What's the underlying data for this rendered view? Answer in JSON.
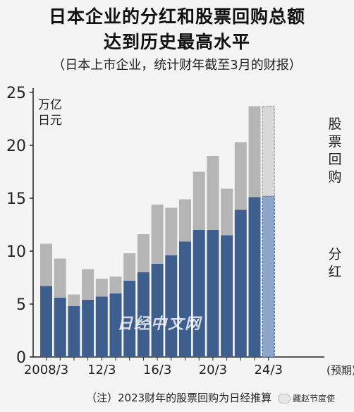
{
  "header": {
    "title_line1": "日本企业的分红和股票回购总额",
    "title_line2": "达到历史最高水平",
    "subtitle": "（日本上市企业，统计财年截至3月的财报）"
  },
  "footnote": "（注）2023财年的股票回购为日经推算",
  "watermark": "日经中文网",
  "brand": "藏赵节度使",
  "chart_data": {
    "type": "bar",
    "stacked": true,
    "x": [
      "2008/3",
      "2009/3",
      "2010/3",
      "2011/3",
      "2012/3",
      "2013/3",
      "2014/3",
      "2015/3",
      "2016/3",
      "2017/3",
      "2018/3",
      "2019/3",
      "2020/3",
      "2021/3",
      "2022/3",
      "2023/3",
      "2024/3"
    ],
    "xtick_labels": [
      "2008/3",
      "12/3",
      "16/3",
      "20/3",
      "24/3"
    ],
    "xtick_suffix": "(预期)",
    "ylabel_lines": [
      "万亿",
      "日元"
    ],
    "ylim": [
      0,
      25
    ],
    "yticks": [
      0,
      5,
      10,
      15,
      20,
      25
    ],
    "series": [
      {
        "name": "分红",
        "values": [
          6.7,
          5.6,
          4.8,
          5.4,
          5.7,
          6.0,
          7.2,
          8.0,
          8.8,
          9.6,
          10.9,
          12.0,
          12.0,
          11.5,
          13.9,
          15.1,
          15.2
        ],
        "color": "#3e5e8e"
      },
      {
        "name": "股票回购",
        "values": [
          4.0,
          3.7,
          1.1,
          2.9,
          1.7,
          1.6,
          2.6,
          3.6,
          5.6,
          4.5,
          4.0,
          5.5,
          7.0,
          4.4,
          6.4,
          8.6,
          8.5
        ],
        "color": "#b5b5b5"
      }
    ],
    "projected_last": true,
    "colors": {
      "projected_dividend": "#8ea5cc",
      "projected_buyback": "#d8d8d8",
      "axis": "#222222"
    }
  }
}
